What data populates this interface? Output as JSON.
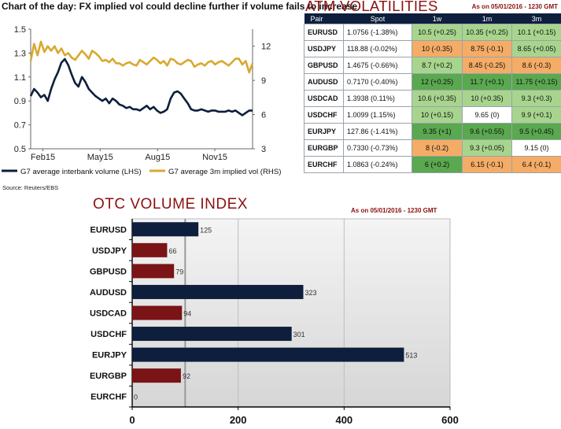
{
  "chart1_title": "Chart of the day: FX implied vol could decline further if volume fails to increase",
  "source": "Source: Reuters/EBS",
  "atm": {
    "title": "ATM VOLATILITIES",
    "as_of": "As on 05/01/2016 - 1230 GMT",
    "headers": [
      "Pair",
      "Spot",
      "1w",
      "1m",
      "3m"
    ],
    "colors": {
      "dark_green": "#5aa84f",
      "light_green": "#a8d58e",
      "orange": "#f4ac66",
      "white": "#ffffff",
      "header": "#0d1f3c"
    },
    "rows": [
      {
        "pair": "EURUSD",
        "spot": "1.0756 (-1.38%)",
        "w1": "10.5 (+0.25)",
        "w1c": "light_green",
        "m1": "10.35 (+0.25)",
        "m1c": "light_green",
        "m3": "10.1 (+0.15)",
        "m3c": "light_green"
      },
      {
        "pair": "USDJPY",
        "spot": "118.88 (-0.02%)",
        "w1": "10 (-0.35)",
        "w1c": "orange",
        "m1": "8.75 (-0.1)",
        "m1c": "orange",
        "m3": "8.65 (+0.05)",
        "m3c": "light_green"
      },
      {
        "pair": "GBPUSD",
        "spot": "1.4675 (-0.66%)",
        "w1": "8.7 (+0.2)",
        "w1c": "light_green",
        "m1": "8.45 (-0.25)",
        "m1c": "orange",
        "m3": "8.6 (-0.3)",
        "m3c": "orange"
      },
      {
        "pair": "AUDUSD",
        "spot": "0.7170 (-0.40%)",
        "w1": "12 (+0.25)",
        "w1c": "dark_green",
        "m1": "11.7 (+0.1)",
        "m1c": "dark_green",
        "m3": "11.75 (+0.15)",
        "m3c": "dark_green"
      },
      {
        "pair": "USDCAD",
        "spot": "1.3938 (0.11%)",
        "w1": "10.6 (+0.35)",
        "w1c": "light_green",
        "m1": "10 (+0.35)",
        "m1c": "light_green",
        "m3": "9.3 (+0.3)",
        "m3c": "light_green"
      },
      {
        "pair": "USDCHF",
        "spot": "1.0099 (1.15%)",
        "w1": "10 (+0.15)",
        "w1c": "light_green",
        "m1": "9.65 (0)",
        "m1c": "white",
        "m3": "9.9 (+0.1)",
        "m3c": "light_green"
      },
      {
        "pair": "EURJPY",
        "spot": "127.86 (-1.41%)",
        "w1": "9.35 (+1)",
        "w1c": "dark_green",
        "m1": "9.6 (+0.55)",
        "m1c": "dark_green",
        "m3": "9.5 (+0.45)",
        "m3c": "dark_green"
      },
      {
        "pair": "EURGBP",
        "spot": "0.7330 (-0.73%)",
        "w1": "8 (-0.2)",
        "w1c": "orange",
        "m1": "9.3 (+0.05)",
        "m1c": "light_green",
        "m3": "9.15 (0)",
        "m3c": "white"
      },
      {
        "pair": "EURCHF",
        "spot": "1.0863 (-0.24%)",
        "w1": "6 (+0.2)",
        "w1c": "dark_green",
        "m1": "6.15 (-0.1)",
        "m1c": "orange",
        "m3": "6.4 (-0.1)",
        "m3c": "orange"
      }
    ]
  },
  "otc": {
    "title": "OTC VOLUME INDEX",
    "as_of": "As on 05/01/2016 - 1230 GMT"
  },
  "chart_data": [
    {
      "type": "line",
      "title": "Chart of the day: FX implied vol could decline further if volume fails to increase",
      "x_ticks": [
        "Feb15",
        "May15",
        "Aug15",
        "Nov15"
      ],
      "y_left": {
        "ylim": [
          0.5,
          1.5
        ],
        "ticks": [
          "0.5",
          "0.7",
          "0.9",
          "1.1",
          "1.3",
          "1.5"
        ]
      },
      "y_right": {
        "ylim": [
          3,
          13.5
        ],
        "ticks": [
          "3",
          "6",
          "9",
          "12"
        ]
      },
      "legend_placement": "bottom",
      "grid": false,
      "series": [
        {
          "name": "G7 average interbank volume (LHS)",
          "axis": "left",
          "color": "#0d1f3c",
          "values": [
            0.94,
            1.0,
            0.97,
            0.93,
            0.95,
            0.9,
            1.0,
            1.08,
            1.14,
            1.22,
            1.25,
            1.2,
            1.12,
            1.05,
            1.02,
            1.1,
            1.06,
            1.0,
            0.97,
            0.94,
            0.92,
            0.9,
            0.92,
            0.88,
            0.92,
            0.9,
            0.87,
            0.86,
            0.84,
            0.85,
            0.83,
            0.83,
            0.82,
            0.84,
            0.86,
            0.83,
            0.85,
            0.82,
            0.8,
            0.81,
            0.83,
            0.92,
            0.97,
            0.98,
            0.96,
            0.92,
            0.88,
            0.83,
            0.82,
            0.82,
            0.83,
            0.82,
            0.81,
            0.82,
            0.82,
            0.81,
            0.81,
            0.81,
            0.82,
            0.81,
            0.82,
            0.8,
            0.78,
            0.8,
            0.82,
            0.82
          ]
        },
        {
          "name": "G7 average 3m implied vol (RHS)",
          "axis": "right",
          "color": "#d9a82e",
          "values": [
            10.7,
            12.2,
            11.2,
            12.4,
            11.5,
            12.0,
            11.6,
            12.0,
            11.4,
            11.8,
            11.2,
            11.4,
            11.0,
            10.8,
            11.2,
            11.6,
            11.3,
            10.9,
            11.6,
            11.4,
            11.1,
            10.7,
            10.8,
            10.6,
            10.9,
            10.5,
            10.5,
            10.3,
            10.5,
            10.6,
            10.4,
            10.3,
            10.8,
            10.6,
            10.4,
            10.7,
            11.0,
            10.8,
            10.5,
            10.7,
            10.3,
            10.9,
            10.8,
            10.5,
            10.4,
            10.6,
            10.8,
            10.7,
            10.2,
            10.4,
            10.5,
            10.3,
            10.6,
            10.7,
            10.4,
            10.6,
            10.7,
            10.5,
            10.3,
            10.6,
            10.9,
            10.9,
            10.4,
            10.7,
            9.7,
            10.5
          ]
        }
      ]
    },
    {
      "type": "bar",
      "orientation": "horizontal",
      "title": "OTC VOLUME INDEX",
      "categories": [
        "EURUSD",
        "USDJPY",
        "GBPUSD",
        "AUDUSD",
        "USDCAD",
        "USDCHF",
        "EURJPY",
        "EURGBP",
        "EURCHF"
      ],
      "values": [
        125,
        66,
        79,
        323,
        94,
        301,
        513,
        92,
        0
      ],
      "labels": [
        "125",
        "66",
        "79",
        "323",
        "94",
        "301",
        "513",
        "92",
        "0"
      ],
      "bar_colors": [
        "#0d1f3c",
        "#7a1416",
        "#7a1416",
        "#0d1f3c",
        "#7a1416",
        "#0d1f3c",
        "#0d1f3c",
        "#7a1416",
        "#0d1f3c"
      ],
      "xlim": [
        0,
        600
      ],
      "x_ticks": [
        "0",
        "200",
        "400",
        "600"
      ],
      "reference_line": 100,
      "grid": true
    }
  ]
}
